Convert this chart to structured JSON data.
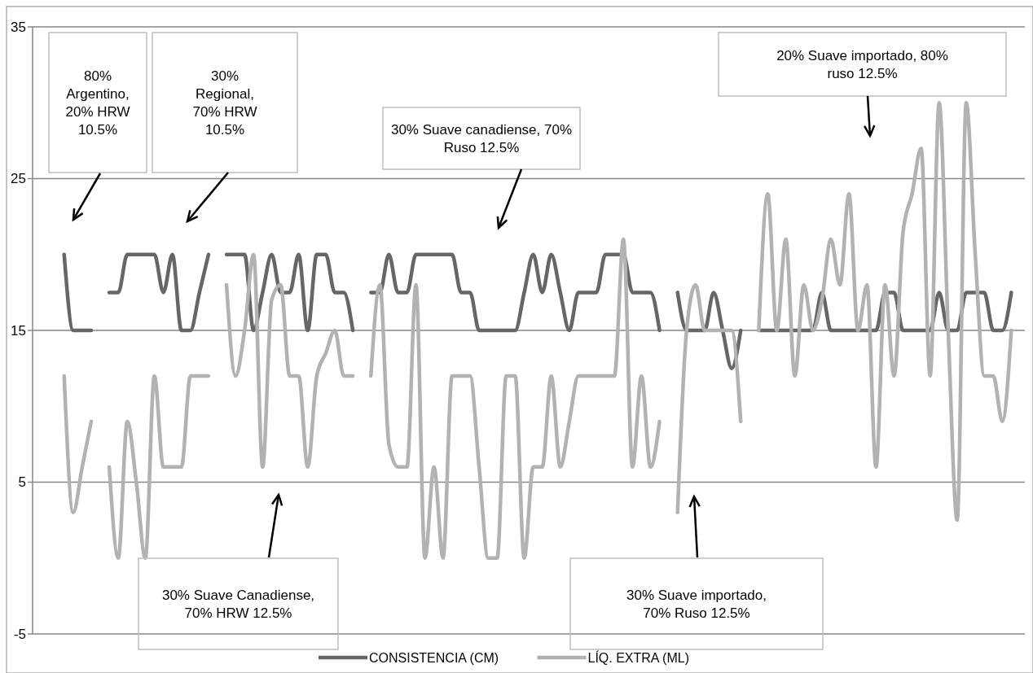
{
  "chart_data": {
    "type": "line",
    "categories": [
      null,
      null,
      null,
      null,
      null,
      null,
      null,
      null,
      null,
      null,
      null,
      null,
      null,
      null,
      null,
      null,
      null,
      null,
      null,
      null,
      null,
      null,
      null,
      null,
      null,
      null,
      null,
      null,
      null,
      null,
      null,
      null,
      null,
      null,
      null,
      null,
      null,
      null,
      null,
      null,
      null,
      null,
      null,
      null,
      null,
      null,
      null,
      null,
      null,
      null,
      null,
      null,
      null,
      null,
      null,
      null,
      null,
      null,
      null,
      null,
      null,
      null,
      null,
      null,
      null,
      null,
      null,
      null,
      null,
      null,
      null,
      null,
      null,
      null,
      null,
      null,
      null,
      null,
      null,
      null,
      null,
      null,
      null,
      null,
      null,
      null,
      null,
      null,
      null,
      null,
      null,
      null,
      null,
      null,
      null,
      null,
      null,
      null,
      null,
      null,
      null,
      null,
      null,
      null,
      null,
      null,
      null,
      null,
      null,
      null
    ],
    "series": [
      {
        "name": "CONSISTENCIA (CM)",
        "color": "#666666",
        "values": [
          null,
          null,
          null,
          20,
          15,
          15,
          15,
          null,
          17.5,
          17.5,
          20,
          20,
          20,
          20,
          17.5,
          20,
          15,
          15,
          17.5,
          20,
          null,
          20,
          20,
          20,
          15,
          17.5,
          20,
          17.5,
          17.5,
          20,
          15,
          20,
          20,
          17.5,
          17.5,
          15,
          null,
          17.5,
          17.5,
          20,
          17.5,
          17.5,
          20,
          20,
          20,
          20,
          20,
          17.5,
          17.5,
          15,
          15,
          15,
          15,
          15,
          17.5,
          20,
          17.5,
          20,
          17.5,
          15,
          17.5,
          17.5,
          17.5,
          20,
          20,
          20,
          17.5,
          17.5,
          17.5,
          15,
          null,
          17.5,
          15,
          15,
          15,
          17.5,
          15,
          12.5,
          15,
          null,
          15,
          15,
          15,
          15,
          15,
          15,
          15,
          17.5,
          15,
          15,
          15,
          15,
          15,
          15,
          17.5,
          17.5,
          15,
          15,
          15,
          15,
          17.5,
          15,
          15,
          17.5,
          17.5,
          17.5,
          15,
          15,
          17.5,
          null
        ]
      },
      {
        "name": "LÍQ. EXTRA (ML)",
        "color": "#b2b2b2",
        "values": [
          null,
          null,
          null,
          12,
          3,
          6,
          9,
          null,
          6,
          0,
          9,
          5,
          0,
          12,
          6,
          6,
          6,
          12,
          12,
          12,
          null,
          18,
          12,
          15,
          20,
          6,
          17,
          18,
          12,
          12,
          6,
          12,
          13.5,
          15,
          12,
          12,
          null,
          12,
          18,
          7.5,
          6,
          6,
          18,
          0,
          6,
          0,
          12,
          12,
          12,
          6,
          0,
          0,
          12,
          12,
          0,
          6,
          6,
          12,
          6,
          9,
          12,
          12,
          12,
          12,
          12,
          21,
          6,
          12,
          6,
          9,
          null,
          3,
          15,
          18,
          15,
          15,
          15,
          15,
          9,
          null,
          15,
          24,
          15,
          21,
          12,
          18,
          15,
          17,
          21,
          18,
          24,
          15,
          18,
          6,
          18,
          12,
          21.5,
          24,
          27,
          12,
          30,
          15,
          2.5,
          30,
          20,
          12,
          12,
          9,
          15,
          null
        ]
      }
    ],
    "ylim": [
      -5,
      35
    ],
    "yticks": [
      -5,
      5,
      15,
      25,
      35
    ],
    "grid": "y",
    "legend": "bottom",
    "annotations": [
      "80% Argentino, 20% HRW 10.5%",
      "30% Regional, 70% HRW 10.5%",
      "30% Suave canadiense, 70% Ruso 12.5%",
      "20% Suave importado, 80% ruso 12.5%",
      "30% Suave Canadiense, 70% HRW 12.5%",
      "30% Suave importado, 70% Ruso 12.5%"
    ]
  }
}
